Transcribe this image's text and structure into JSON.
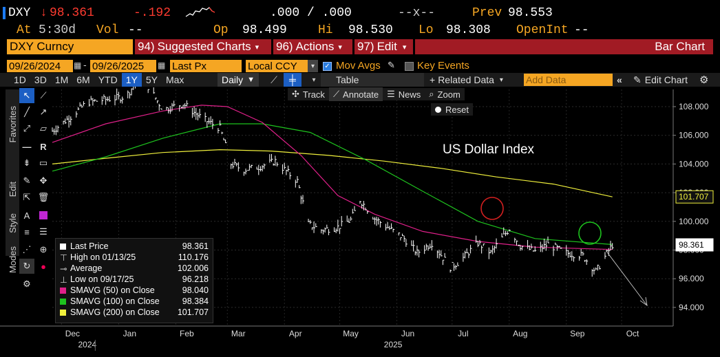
{
  "quote": {
    "ticker": "DXY",
    "arrow": "↓",
    "last": "98.361",
    "change": "-.192",
    "bid_ask": ".000 / .000",
    "size": "--x--",
    "prev_label": "Prev",
    "prev": "98.553",
    "at_label": "At",
    "time": "5:30d",
    "vol_label": "Vol",
    "vol": "--",
    "op_label": "Op",
    "op": "98.499",
    "hi_label": "Hi",
    "hi": "98.530",
    "lo_label": "Lo",
    "lo": "98.308",
    "oi_label": "OpenInt",
    "oi": "--"
  },
  "menubar": {
    "security": "DXY Curncy",
    "suggested_num": "94)",
    "suggested": "Suggested Charts",
    "actions_num": "96)",
    "actions": "Actions",
    "edit_num": "97)",
    "edit": "Edit",
    "chart_type": "Bar Chart"
  },
  "settings": {
    "start_date": "09/26/2024",
    "end_date": "09/26/2025",
    "field": "Last Px",
    "currency": "Local CCY",
    "mov_avgs": "Mov Avgs",
    "key_events": "Key Events"
  },
  "toolbar": {
    "periods": [
      "1D",
      "3D",
      "1M",
      "6M",
      "YTD",
      "1Y",
      "5Y",
      "Max"
    ],
    "active_period": "1Y",
    "frequency": "Daily",
    "table": "Table",
    "related": "Related Data",
    "add_data_placeholder": "Add Data",
    "edit_chart": "Edit Chart"
  },
  "chart_tools": {
    "track": "Track",
    "annotate": "Annotate",
    "news": "News",
    "zoom": "Zoom",
    "reset": "Reset"
  },
  "side_tabs": [
    "Favorites",
    "Edit",
    "Style",
    "Modes"
  ],
  "legend": [
    {
      "label": "Last Price",
      "value": "98.361",
      "color": "#ffffff"
    },
    {
      "label": "High on 01/13/25",
      "value": "110.176",
      "color": "#ffffff"
    },
    {
      "label": "Average",
      "value": "102.006",
      "color": "#ffffff"
    },
    {
      "label": "Low on 09/17/25",
      "value": "96.218",
      "color": "#ffffff"
    },
    {
      "label": "SMAVG (50)  on Close",
      "value": "98.040",
      "color": "#e0208a"
    },
    {
      "label": "SMAVG (100)  on Close",
      "value": "98.384",
      "color": "#1ec31e"
    },
    {
      "label": "SMAVG (200)  on Close",
      "value": "101.707",
      "color": "#f0f03c"
    }
  ],
  "chart_data": {
    "type": "line",
    "title": "US Dollar Index",
    "y_ticks": [
      "108.000",
      "106.000",
      "104.000",
      "102.000",
      "100.000",
      "98.000",
      "96.000",
      "94.000"
    ],
    "ylim": [
      92.7,
      109.2
    ],
    "x_ticks": [
      "Dec",
      "Jan",
      "Feb",
      "Mar",
      "Apr",
      "May",
      "Jun",
      "Jul",
      "Aug",
      "Sep",
      "Oct"
    ],
    "x_year_labels": [
      "2024",
      "2025"
    ],
    "tags": [
      {
        "value": "101.707",
        "color": "#f0f03c"
      },
      {
        "value": "98.361",
        "color": "#ffffff"
      }
    ],
    "series": [
      {
        "name": "Last Price",
        "color": "#ffffff",
        "x": [
          "2024-11-26",
          "2024-12-05",
          "2024-12-15",
          "2024-12-25",
          "2025-01-05",
          "2025-01-13",
          "2025-01-25",
          "2025-02-05",
          "2025-02-15",
          "2025-02-25",
          "2025-03-03",
          "2025-03-10",
          "2025-03-18",
          "2025-03-27",
          "2025-04-02",
          "2025-04-08",
          "2025-04-14",
          "2025-04-21",
          "2025-04-30",
          "2025-05-07",
          "2025-05-12",
          "2025-05-20",
          "2025-05-28",
          "2025-06-05",
          "2025-06-12",
          "2025-06-20",
          "2025-06-30",
          "2025-07-05",
          "2025-07-15",
          "2025-07-22",
          "2025-08-01",
          "2025-08-07",
          "2025-08-15",
          "2025-08-22",
          "2025-09-01",
          "2025-09-10",
          "2025-09-17",
          "2025-09-26"
        ],
        "y": [
          106.3,
          107.2,
          108.3,
          108.5,
          108.7,
          110.2,
          107.8,
          108.2,
          107.2,
          106.5,
          104.0,
          103.6,
          103.8,
          104.2,
          103.5,
          102.8,
          99.8,
          99.4,
          99.6,
          100.1,
          101.5,
          100.2,
          99.5,
          98.8,
          97.8,
          98.5,
          96.8,
          97.2,
          98.5,
          97.8,
          99.5,
          98.3,
          97.9,
          98.4,
          97.8,
          97.6,
          96.5,
          98.361
        ]
      },
      {
        "name": "SMAVG (50)",
        "color": "#e0208a",
        "x": [
          "2024-11-26",
          "2024-12-25",
          "2025-01-25",
          "2025-02-15",
          "2025-03-01",
          "2025-03-20",
          "2025-04-10",
          "2025-04-30",
          "2025-05-20",
          "2025-06-15",
          "2025-07-15",
          "2025-08-15",
          "2025-09-26"
        ],
        "y": [
          105.5,
          106.8,
          107.7,
          108.1,
          108.0,
          106.9,
          104.6,
          101.8,
          100.5,
          99.3,
          98.6,
          98.2,
          98.04
        ]
      },
      {
        "name": "SMAVG (100)",
        "color": "#1ec31e",
        "x": [
          "2024-11-26",
          "2024-12-25",
          "2025-01-25",
          "2025-02-25",
          "2025-03-20",
          "2025-04-15",
          "2025-05-15",
          "2025-06-15",
          "2025-07-15",
          "2025-08-15",
          "2025-09-26"
        ],
        "y": [
          103.5,
          104.5,
          105.8,
          106.8,
          106.8,
          106.2,
          104.3,
          102.1,
          100.0,
          98.8,
          98.384
        ]
      },
      {
        "name": "SMAVG (200)",
        "color": "#f0f03c",
        "x": [
          "2024-11-26",
          "2024-12-25",
          "2025-01-25",
          "2025-02-25",
          "2025-03-25",
          "2025-04-25",
          "2025-05-25",
          "2025-06-25",
          "2025-07-25",
          "2025-08-25",
          "2025-09-26"
        ],
        "y": [
          104.0,
          104.4,
          104.8,
          105.0,
          104.9,
          104.6,
          104.2,
          103.7,
          103.1,
          102.6,
          101.707
        ]
      }
    ]
  }
}
